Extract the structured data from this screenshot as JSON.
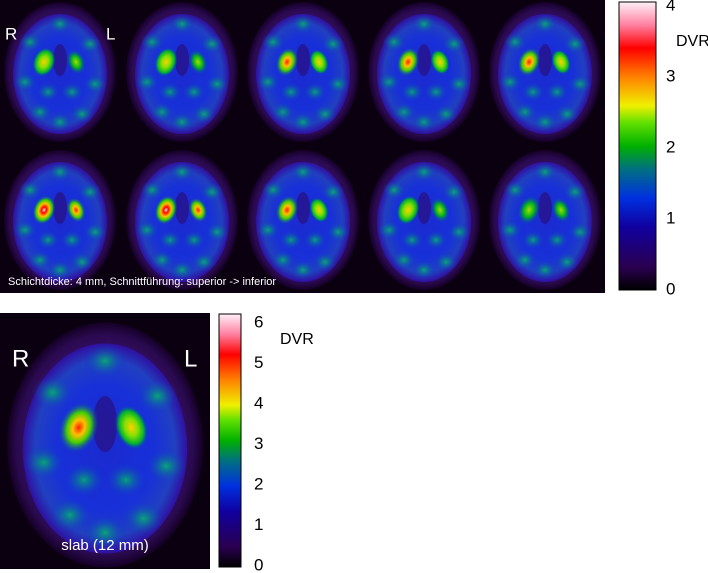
{
  "top_panel": {
    "right_label": "R",
    "left_label": "L",
    "caption": "Schichtdicke: 4 mm, Schnittführung: superior -> inferior",
    "colorbar": {
      "title": "DVR",
      "ticks": [
        0,
        1,
        2,
        3,
        4
      ]
    }
  },
  "bottom_panel": {
    "right_label": "R",
    "left_label": "L",
    "caption": "slab (12 mm)",
    "colorbar": {
      "title": "DVR",
      "ticks": [
        0,
        1,
        2,
        3,
        4,
        5,
        6
      ]
    }
  }
}
